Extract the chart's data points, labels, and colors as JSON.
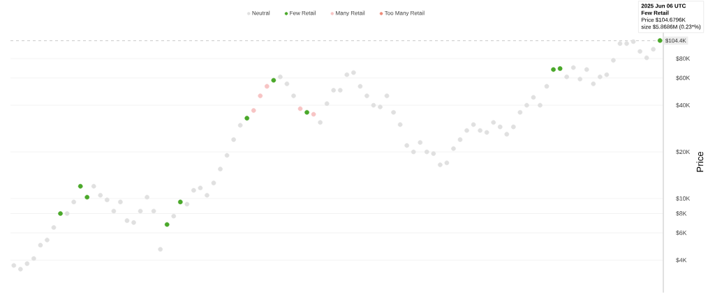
{
  "chart_data": {
    "type": "scatter",
    "ylabel": "Price",
    "categories": [
      null,
      null,
      null,
      null,
      null,
      null,
      null,
      null,
      null,
      null,
      null,
      null,
      null,
      null,
      null,
      null,
      null,
      null,
      null,
      null,
      null,
      null,
      null,
      null,
      null,
      null,
      null,
      null,
      null,
      null,
      null,
      null,
      null,
      null,
      null,
      null,
      null,
      null,
      null,
      null,
      null,
      null,
      null,
      null,
      null,
      null,
      null,
      null,
      null,
      null,
      null,
      null,
      null,
      null,
      null,
      null,
      null,
      null,
      null,
      null,
      null,
      null,
      null,
      null,
      null,
      null,
      null,
      null,
      null,
      null,
      null,
      null,
      null,
      null,
      null,
      null,
      null,
      null,
      null,
      null,
      null,
      null,
      null,
      null,
      null,
      null,
      null,
      null,
      null,
      null,
      null,
      null,
      null,
      null,
      null,
      null,
      null,
      null
    ],
    "series": [
      {
        "name": "Neutral",
        "color": "#e0e0e0",
        "values": [
          3700,
          3500,
          3800,
          4100,
          5000,
          5400,
          6500,
          null,
          8000,
          9500,
          null,
          null,
          12000,
          10500,
          9800,
          8300,
          9500,
          7200,
          7000,
          8300,
          10200,
          8300,
          4700,
          null,
          7700,
          null,
          9200,
          11300,
          11700,
          10500,
          12600,
          15500,
          19000,
          24000,
          29700,
          null,
          null,
          null,
          null,
          null,
          61000,
          55000,
          46000,
          null,
          null,
          null,
          31000,
          41000,
          50000,
          50000,
          63000,
          65000,
          53000,
          46000,
          40000,
          39000,
          46000,
          36000,
          30000,
          22000,
          20000,
          23000,
          20000,
          19500,
          16500,
          17000,
          21000,
          24000,
          27500,
          30000,
          27500,
          26700,
          31000,
          29000,
          26000,
          29000,
          36000,
          40000,
          45000,
          40000,
          53000,
          null,
          null,
          61000,
          70000,
          59000,
          68000,
          55000,
          61000,
          63000,
          78000,
          100000,
          100000,
          103000,
          89000,
          81000,
          92000,
          null
        ]
      },
      {
        "name": "Few Retail",
        "color": "#4aa82a",
        "values": [
          null,
          null,
          null,
          null,
          null,
          null,
          null,
          8000,
          null,
          null,
          12000,
          10200,
          null,
          null,
          null,
          null,
          null,
          null,
          null,
          null,
          null,
          null,
          null,
          6800,
          null,
          9500,
          null,
          null,
          null,
          null,
          null,
          null,
          null,
          null,
          null,
          33000,
          null,
          null,
          null,
          58000,
          null,
          null,
          null,
          null,
          36000,
          null,
          null,
          null,
          null,
          null,
          null,
          null,
          null,
          null,
          null,
          null,
          null,
          null,
          null,
          null,
          null,
          null,
          null,
          null,
          null,
          null,
          null,
          null,
          null,
          null,
          null,
          null,
          null,
          null,
          null,
          null,
          null,
          null,
          null,
          null,
          null,
          68000,
          69000,
          null,
          null,
          null,
          null,
          null,
          null,
          null,
          null,
          null,
          null,
          null,
          null,
          null,
          null,
          104679.6
        ]
      },
      {
        "name": "Many Retail",
        "color": "#f7c4c4",
        "values": [
          null,
          null,
          null,
          null,
          null,
          null,
          null,
          null,
          null,
          null,
          null,
          null,
          null,
          null,
          null,
          null,
          null,
          null,
          null,
          null,
          null,
          null,
          null,
          null,
          null,
          null,
          null,
          null,
          null,
          null,
          null,
          null,
          null,
          null,
          null,
          null,
          37000,
          46000,
          53000,
          null,
          null,
          null,
          null,
          38000,
          null,
          35000,
          null,
          null,
          null,
          null,
          null,
          null,
          null,
          null,
          null,
          null,
          null,
          null,
          null,
          null,
          null,
          null,
          null,
          null,
          null,
          null,
          null,
          null,
          null,
          null,
          null,
          null,
          null,
          null,
          null,
          null,
          null,
          null,
          null,
          null,
          null,
          null,
          null,
          null,
          null,
          null,
          null,
          null,
          null,
          null,
          null,
          null,
          null,
          null,
          null,
          null,
          null,
          null
        ]
      },
      {
        "name": "Too Many Retail",
        "color": "#ee8a78",
        "values": [
          null,
          null,
          null,
          null,
          null,
          null,
          null,
          null,
          null,
          null,
          null,
          null,
          null,
          null,
          null,
          null,
          null,
          null,
          null,
          null,
          null,
          null,
          null,
          null,
          null,
          null,
          null,
          null,
          null,
          null,
          null,
          null,
          null,
          null,
          null,
          null,
          null,
          null,
          null,
          null,
          null,
          null,
          null,
          null,
          null,
          null,
          null,
          null,
          null,
          null,
          null,
          null,
          null,
          null,
          null,
          null,
          null,
          null,
          null,
          null,
          null,
          null,
          null,
          null,
          null,
          null,
          null,
          null,
          null,
          null,
          null,
          null,
          null,
          null,
          null,
          null,
          null,
          null,
          null,
          null,
          null,
          null,
          null,
          null,
          null,
          null,
          null,
          null,
          null,
          null,
          null,
          null,
          null,
          null,
          null,
          null,
          null,
          null
        ]
      }
    ],
    "ylim": [
      2470,
      120000
    ],
    "yticks": [
      {
        "value": 4000,
        "label": "$4K"
      },
      {
        "value": 6000,
        "label": "$6K"
      },
      {
        "value": 8000,
        "label": "$8K"
      },
      {
        "value": 10000,
        "label": "$10K"
      },
      {
        "value": 20000,
        "label": "$20K"
      },
      {
        "value": 40000,
        "label": "$40K"
      },
      {
        "value": 60000,
        "label": "$60K"
      },
      {
        "value": 80000,
        "label": "$80K"
      }
    ],
    "log": "y",
    "grid": "y",
    "legend": "top",
    "marker": "circle",
    "tick_labels": "y",
    "ref_lines": [
      {
        "axis": "y",
        "value": 104400,
        "label": "$104.4K",
        "color": "#999999",
        "line_style": "dashed"
      }
    ],
    "annotations": [
      "2025 Jun 06 UTC",
      "Few Retail",
      "Price $104.6796K",
      "size $5.8686M (0.23*%)"
    ]
  }
}
